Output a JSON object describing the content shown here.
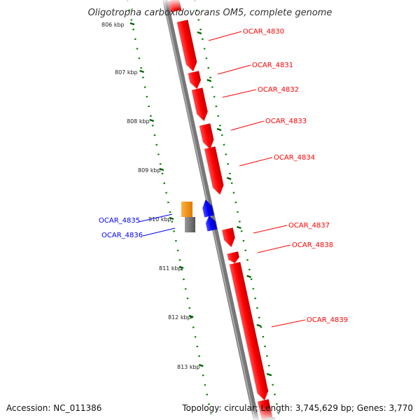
{
  "title": "Oligotropha carboxidovorans OM5, complete genome",
  "footer": {
    "accession": "Accession: NC_011386",
    "summary": "Topology: circular; Length: 3,745,629 bp; Genes: 3,770"
  },
  "colors": {
    "forward": "#ff0000",
    "reverse": "#0000ff",
    "backbone": "#888888",
    "tick": "#006600",
    "orange": "#ff8c00",
    "grey_feature": "#707070"
  },
  "ticks": [
    "806 kbp",
    "807 kbp",
    "808 kbp",
    "809 kbp",
    "810 kbp",
    "811 kbp",
    "812 kbp",
    "813 kbp"
  ],
  "genes": [
    {
      "id": "OCAR_4830",
      "strand": "forward"
    },
    {
      "id": "OCAR_4831",
      "strand": "forward"
    },
    {
      "id": "OCAR_4832",
      "strand": "forward"
    },
    {
      "id": "OCAR_4833",
      "strand": "forward"
    },
    {
      "id": "OCAR_4834",
      "strand": "forward"
    },
    {
      "id": "OCAR_4835",
      "strand": "reverse"
    },
    {
      "id": "OCAR_4836",
      "strand": "reverse"
    },
    {
      "id": "OCAR_4837",
      "strand": "forward"
    },
    {
      "id": "OCAR_4838",
      "strand": "forward"
    },
    {
      "id": "OCAR_4839",
      "strand": "forward"
    }
  ]
}
